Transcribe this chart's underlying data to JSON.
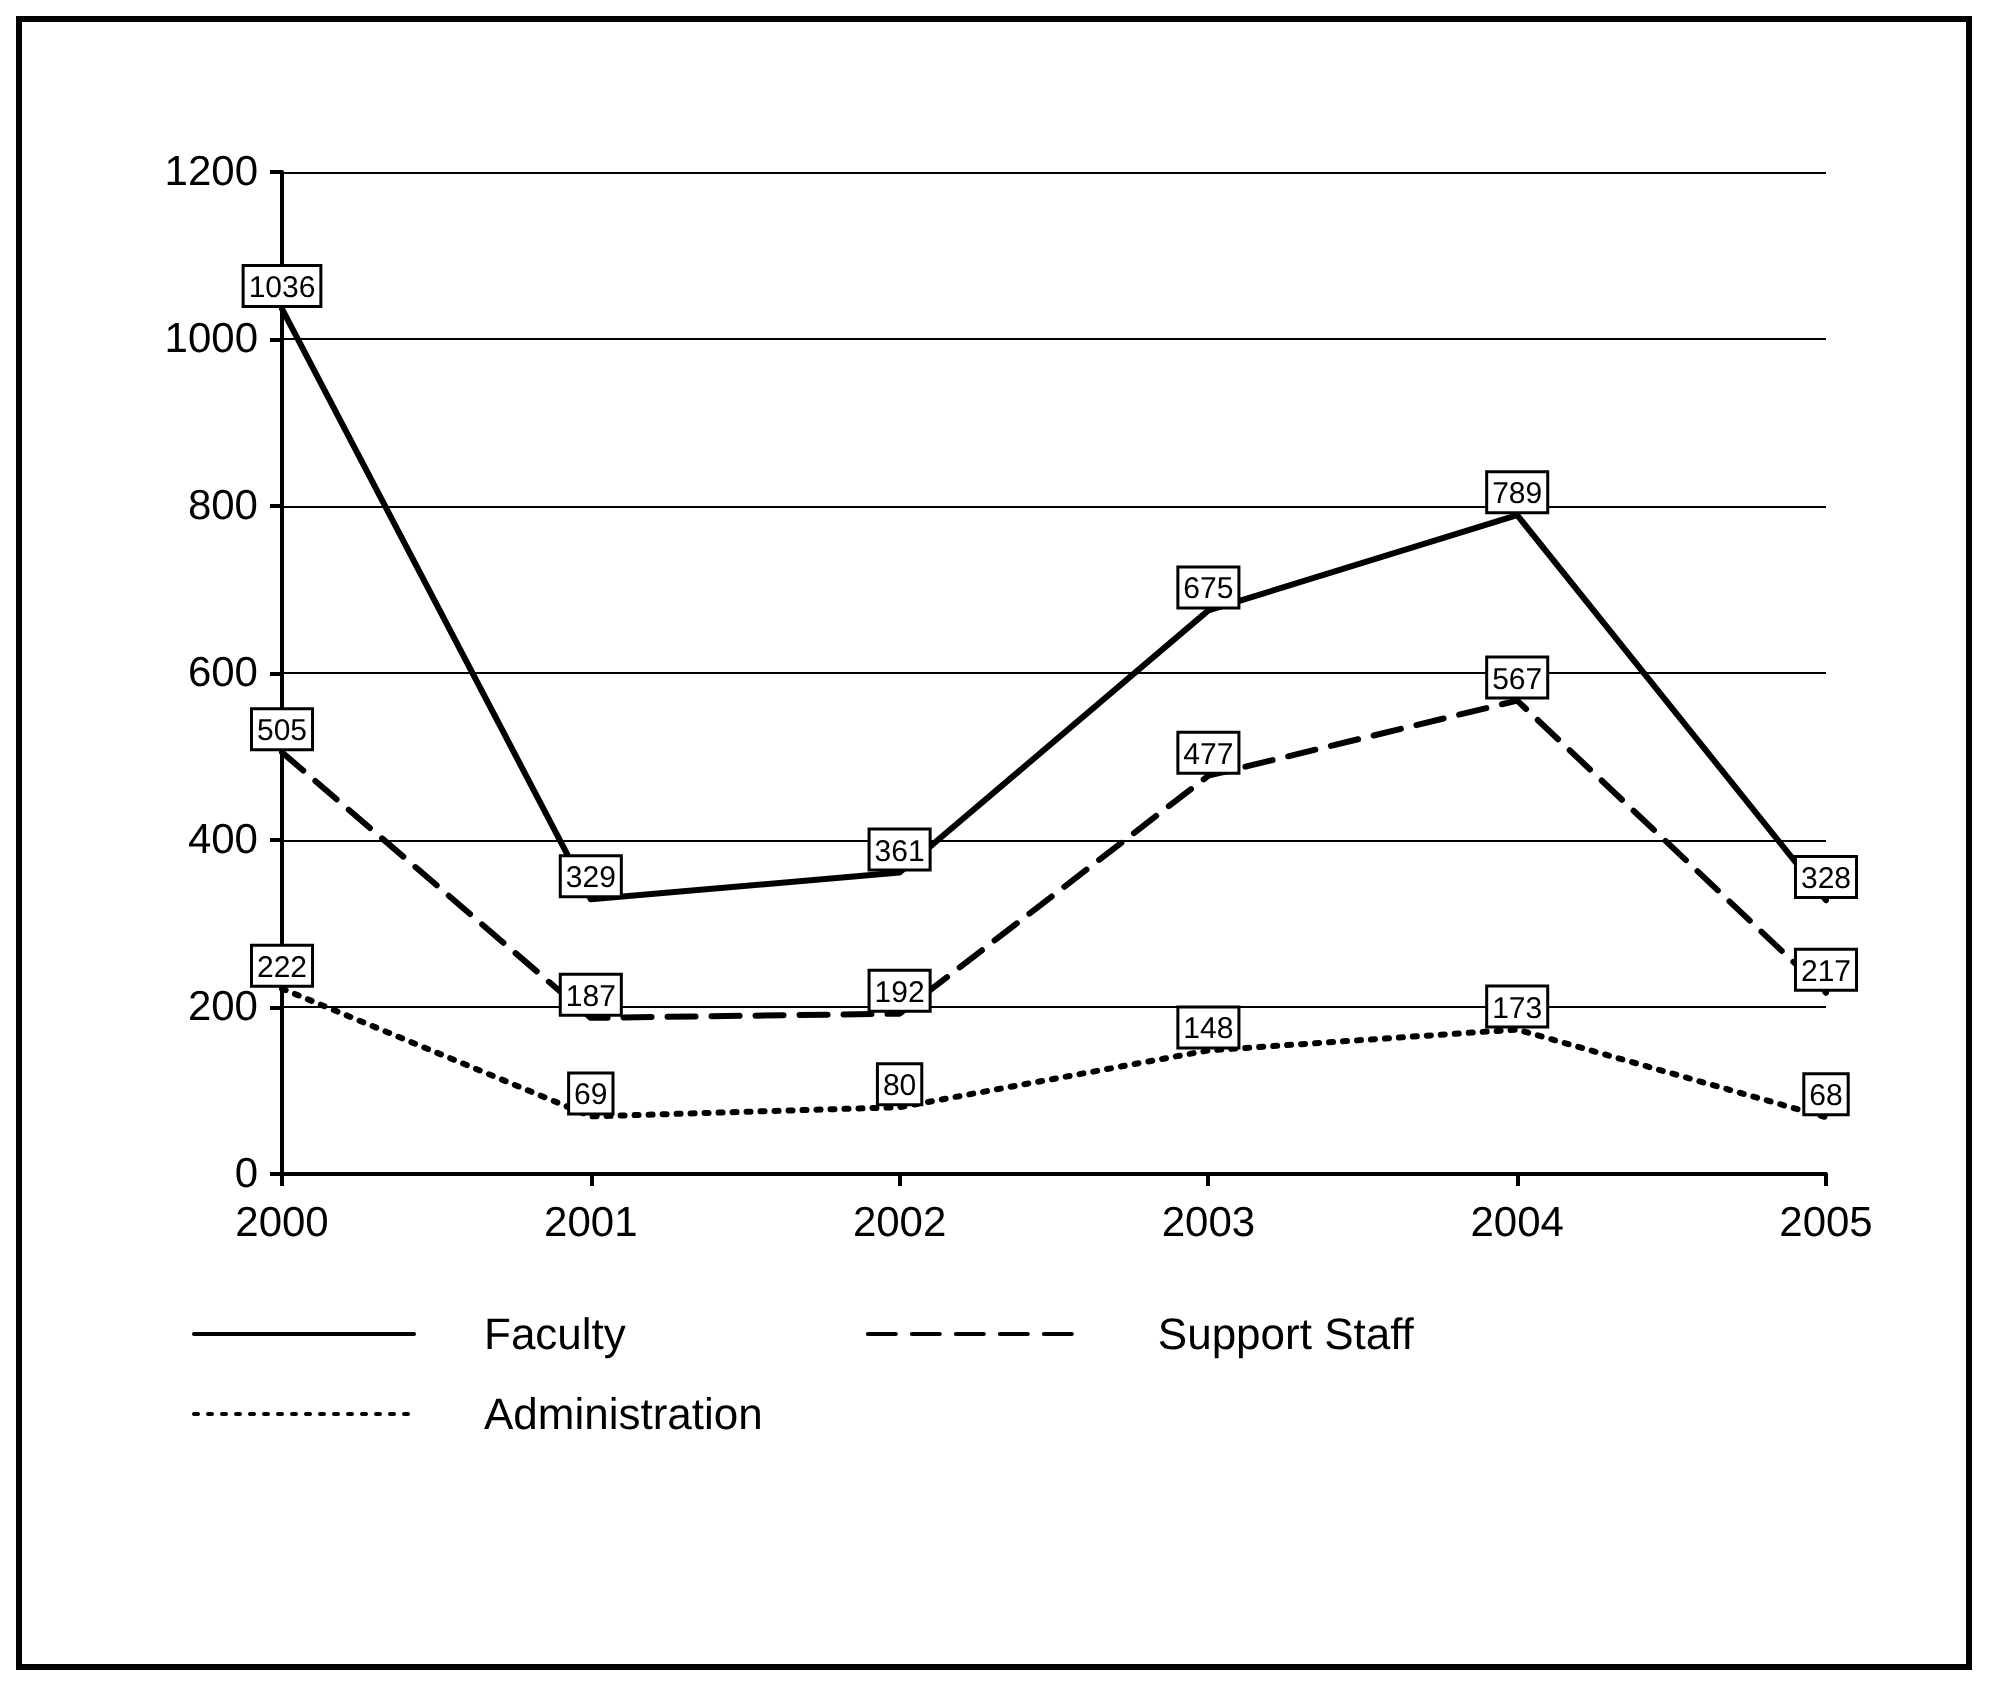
{
  "chart_data": {
    "type": "line",
    "categories": [
      "2000",
      "2001",
      "2002",
      "2003",
      "2004",
      "2005"
    ],
    "series": [
      {
        "name": "Faculty",
        "color": "#000000",
        "line_style": "solid",
        "values": [
          1036,
          329,
          361,
          675,
          789,
          328
        ]
      },
      {
        "name": "Support Staff",
        "color": "#000000",
        "line_style": "dashed",
        "values": [
          505,
          187,
          192,
          477,
          567,
          217
        ]
      },
      {
        "name": "Administration",
        "color": "#000000",
        "line_style": "dotted",
        "values": [
          222,
          69,
          80,
          148,
          173,
          68
        ]
      }
    ],
    "ylim": [
      0,
      1200
    ],
    "yticks": [
      0,
      200,
      400,
      600,
      800,
      1000,
      1200
    ],
    "grid": "y",
    "legend": "bottom",
    "data_labels": true,
    "marker": "none"
  }
}
